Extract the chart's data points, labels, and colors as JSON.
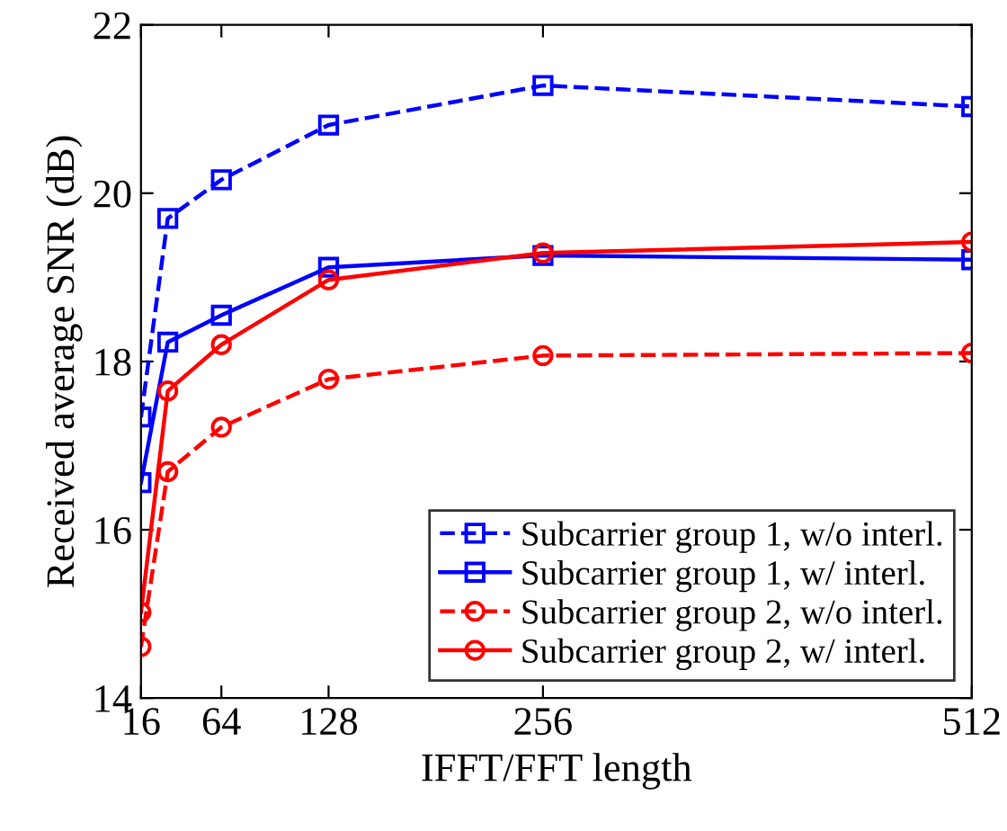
{
  "chart_data": {
    "type": "line",
    "xlabel": "IFFT/FFT length",
    "ylabel": "Received average SNR (dB)",
    "x": [
      16,
      32,
      64,
      128,
      256,
      512
    ],
    "series": [
      {
        "name": "Subcarrier group 1, w/o interl.",
        "color": "#0000ff",
        "marker": "square",
        "line_style": "dashed",
        "values": [
          17.34,
          19.7,
          20.16,
          20.81,
          21.28,
          21.03
        ]
      },
      {
        "name": "Subcarrier group 1, w/ interl.",
        "color": "#0000ff",
        "marker": "square",
        "line_style": "solid",
        "values": [
          16.56,
          18.23,
          18.55,
          19.12,
          19.26,
          19.21
        ]
      },
      {
        "name": "Subcarrier group 2, w/o interl.",
        "color": "#ff0000",
        "marker": "circle",
        "line_style": "dashed",
        "values": [
          14.61,
          16.69,
          17.22,
          17.79,
          18.07,
          18.1
        ]
      },
      {
        "name": "Subcarrier group 2, w/ interl.",
        "color": "#ff0000",
        "marker": "circle",
        "line_style": "solid",
        "values": [
          15.02,
          17.65,
          18.2,
          18.97,
          19.29,
          19.42
        ]
      }
    ],
    "xlim": [
      16,
      512
    ],
    "ylim": [
      14,
      22
    ],
    "xticks": [
      16,
      64,
      128,
      256,
      512
    ],
    "yticks": [
      14,
      16,
      18,
      20,
      22
    ],
    "grid": false,
    "legend": "bottom right"
  }
}
